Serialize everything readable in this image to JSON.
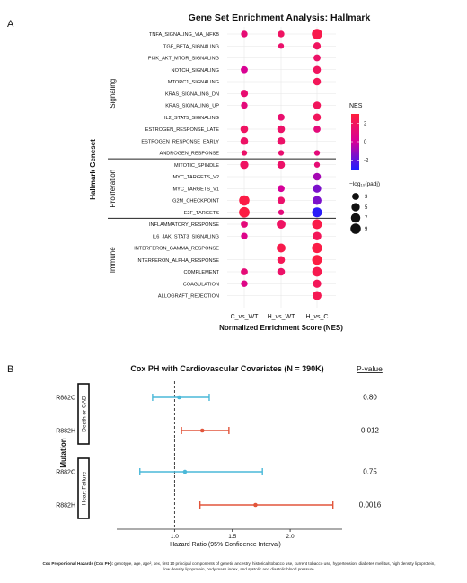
{
  "panel_a": {
    "letter": "A",
    "title": "Gene Set Enrichment Analysis: Hallmark",
    "ylabel": "Hallmark Geneset",
    "xlabel": "Normalized Enrichment Score (NES)",
    "legend_color_title": "NES",
    "legend_size_title": "−log₁₀(padj)",
    "colors": {
      "low": "#1f1fff",
      "mid": "#d60099",
      "high": "#ff1f3d"
    }
  },
  "panel_b": {
    "letter": "B",
    "title": "Cox PH with Cardiovascular Covariates (N = 390K)",
    "pvalue_header": "P-value",
    "ylabel": "Mutation",
    "xlabel": "Hazard Ratio (95% Confidence Interval)",
    "colors": {
      "R882C": "#4ab8d8",
      "R882H": "#e2553b"
    }
  },
  "footer": {
    "bold": "Cox Proportional Hazards (Cox PH):",
    "text": " genotype, age, age², sex, first 10 principal components of genetic ancestry, historical tobacco use, current tobacco use, hypertension, diabetes mellitus, high density lipoprotein, low density lipoprotein, body mass index, and systolic and diastolic blood pressure"
  },
  "chart_data": [
    {
      "type": "scatter",
      "subtype": "dot-plot",
      "x": [
        "C_vs_WT",
        "H_vs_WT",
        "H_vs_C"
      ],
      "groups": [
        {
          "name": "Signaling",
          "genesets": [
            "TNFA_SIGNALING_VIA_NFKB",
            "TGF_BETA_SIGNALING",
            "PI3K_AKT_MTOR_SIGNALING",
            "NOTCH_SIGNALING",
            "MTORC1_SIGNALING",
            "KRAS_SIGNALING_DN",
            "KRAS_SIGNALING_UP",
            "IL2_STAT5_SIGNALING",
            "ESTROGEN_RESPONSE_LATE",
            "ESTROGEN_RESPONSE_EARLY",
            "ANDROGEN_RESPONSE"
          ]
        },
        {
          "name": "Proliferation",
          "genesets": [
            "MITOTIC_SPINDLE",
            "MYC_TARGETS_V2",
            "MYC_TARGETS_V1",
            "G2M_CHECKPOINT",
            "E2F_TARGETS"
          ]
        },
        {
          "name": "Immune",
          "genesets": [
            "INFLAMMATORY_RESPONSE",
            "IL6_JAK_STAT3_SIGNALING",
            "INTERFERON_GAMMA_RESPONSE",
            "INTERFERON_ALPHA_RESPONSE",
            "COMPLEMENT",
            "COAGULATION",
            "ALLOGRAFT_REJECTION"
          ]
        }
      ],
      "color_scale": {
        "title": "NES",
        "ticks": [
          2,
          0,
          -2
        ],
        "range": [
          -3,
          3
        ]
      },
      "size_scale": {
        "title": "−log₁₀(padj)",
        "ticks": [
          3,
          5,
          7,
          9
        ]
      },
      "points": [
        {
          "geneset": "TNFA_SIGNALING_VIA_NFKB",
          "x": "C_vs_WT",
          "nes": 1.2,
          "size": 2.5
        },
        {
          "geneset": "TNFA_SIGNALING_VIA_NFKB",
          "x": "H_vs_WT",
          "nes": 1.8,
          "size": 2.5
        },
        {
          "geneset": "TNFA_SIGNALING_VIA_NFKB",
          "x": "H_vs_C",
          "nes": 2.5,
          "size": 9
        },
        {
          "geneset": "TGF_BETA_SIGNALING",
          "x": "H_vs_WT",
          "nes": 1.5,
          "size": 1.5
        },
        {
          "geneset": "TGF_BETA_SIGNALING",
          "x": "H_vs_C",
          "nes": 1.9,
          "size": 3.5
        },
        {
          "geneset": "PI3K_AKT_MTOR_SIGNALING",
          "x": "H_vs_C",
          "nes": 1.6,
          "size": 3
        },
        {
          "geneset": "NOTCH_SIGNALING",
          "x": "C_vs_WT",
          "nes": 0.2,
          "size": 3
        },
        {
          "geneset": "NOTCH_SIGNALING",
          "x": "H_vs_C",
          "nes": 1.9,
          "size": 4
        },
        {
          "geneset": "MTORC1_SIGNALING",
          "x": "H_vs_C",
          "nes": 2.1,
          "size": 4
        },
        {
          "geneset": "KRAS_SIGNALING_DN",
          "x": "C_vs_WT",
          "nes": 1.3,
          "size": 3.5
        },
        {
          "geneset": "KRAS_SIGNALING_UP",
          "x": "C_vs_WT",
          "nes": 1.0,
          "size": 2.5
        },
        {
          "geneset": "KRAS_SIGNALING_UP",
          "x": "H_vs_C",
          "nes": 2.0,
          "size": 4
        },
        {
          "geneset": "IL2_STAT5_SIGNALING",
          "x": "H_vs_WT",
          "nes": 1.4,
          "size": 3
        },
        {
          "geneset": "IL2_STAT5_SIGNALING",
          "x": "H_vs_C",
          "nes": 2.0,
          "size": 4
        },
        {
          "geneset": "ESTROGEN_RESPONSE_LATE",
          "x": "C_vs_WT",
          "nes": 1.8,
          "size": 4
        },
        {
          "geneset": "ESTROGEN_RESPONSE_LATE",
          "x": "H_vs_WT",
          "nes": 1.6,
          "size": 4
        },
        {
          "geneset": "ESTROGEN_RESPONSE_LATE",
          "x": "H_vs_C",
          "nes": 1.0,
          "size": 3
        },
        {
          "geneset": "ESTROGEN_RESPONSE_EARLY",
          "x": "C_vs_WT",
          "nes": 1.7,
          "size": 4
        },
        {
          "geneset": "ESTROGEN_RESPONSE_EARLY",
          "x": "H_vs_WT",
          "nes": 1.6,
          "size": 4
        },
        {
          "geneset": "ANDROGEN_RESPONSE",
          "x": "C_vs_WT",
          "nes": 1.6,
          "size": 1.5
        },
        {
          "geneset": "ANDROGEN_RESPONSE",
          "x": "H_vs_WT",
          "nes": 1.4,
          "size": 1.5
        },
        {
          "geneset": "ANDROGEN_RESPONSE",
          "x": "H_vs_C",
          "nes": 1.0,
          "size": 1.5
        },
        {
          "geneset": "MITOTIC_SPINDLE",
          "x": "C_vs_WT",
          "nes": 1.8,
          "size": 5
        },
        {
          "geneset": "MITOTIC_SPINDLE",
          "x": "H_vs_WT",
          "nes": 1.6,
          "size": 4
        },
        {
          "geneset": "MITOTIC_SPINDLE",
          "x": "H_vs_C",
          "nes": 1.2,
          "size": 1.5
        },
        {
          "geneset": "MYC_TARGETS_V2",
          "x": "H_vs_C",
          "nes": -0.8,
          "size": 4
        },
        {
          "geneset": "MYC_TARGETS_V1",
          "x": "H_vs_WT",
          "nes": 0.0,
          "size": 3
        },
        {
          "geneset": "MYC_TARGETS_V1",
          "x": "H_vs_C",
          "nes": -1.5,
          "size": 5
        },
        {
          "geneset": "G2M_CHECKPOINT",
          "x": "C_vs_WT",
          "nes": 2.7,
          "size": 9
        },
        {
          "geneset": "G2M_CHECKPOINT",
          "x": "H_vs_WT",
          "nes": 1.5,
          "size": 3.5
        },
        {
          "geneset": "G2M_CHECKPOINT",
          "x": "H_vs_C",
          "nes": -1.5,
          "size": 6
        },
        {
          "geneset": "E2F_TARGETS",
          "x": "C_vs_WT",
          "nes": 2.8,
          "size": 9.5
        },
        {
          "geneset": "E2F_TARGETS",
          "x": "H_vs_WT",
          "nes": 1.0,
          "size": 1.5
        },
        {
          "geneset": "E2F_TARGETS",
          "x": "H_vs_C",
          "nes": -2.8,
          "size": 8
        },
        {
          "geneset": "INFLAMMATORY_RESPONSE",
          "x": "C_vs_WT",
          "nes": 1.0,
          "size": 3
        },
        {
          "geneset": "INFLAMMATORY_RESPONSE",
          "x": "H_vs_WT",
          "nes": 1.8,
          "size": 6
        },
        {
          "geneset": "INFLAMMATORY_RESPONSE",
          "x": "H_vs_C",
          "nes": 2.6,
          "size": 8
        },
        {
          "geneset": "IL6_JAK_STAT3_SIGNALING",
          "x": "C_vs_WT",
          "nes": 0.5,
          "size": 2.5
        },
        {
          "geneset": "IL6_JAK_STAT3_SIGNALING",
          "x": "H_vs_C",
          "nes": 2.1,
          "size": 5.5
        },
        {
          "geneset": "INTERFERON_GAMMA_RESPONSE",
          "x": "H_vs_WT",
          "nes": 2.5,
          "size": 6
        },
        {
          "geneset": "INTERFERON_GAMMA_RESPONSE",
          "x": "H_vs_C",
          "nes": 2.7,
          "size": 8.5
        },
        {
          "geneset": "INTERFERON_ALPHA_RESPONSE",
          "x": "H_vs_WT",
          "nes": 2.2,
          "size": 4
        },
        {
          "geneset": "INTERFERON_ALPHA_RESPONSE",
          "x": "H_vs_C",
          "nes": 2.8,
          "size": 8
        },
        {
          "geneset": "COMPLEMENT",
          "x": "C_vs_WT",
          "nes": 1.1,
          "size": 3
        },
        {
          "geneset": "COMPLEMENT",
          "x": "H_vs_WT",
          "nes": 1.6,
          "size": 4
        },
        {
          "geneset": "COMPLEMENT",
          "x": "H_vs_C",
          "nes": 2.4,
          "size": 7.5
        },
        {
          "geneset": "COAGULATION",
          "x": "C_vs_WT",
          "nes": 0.6,
          "size": 2.5
        },
        {
          "geneset": "COAGULATION",
          "x": "H_vs_C",
          "nes": 2.1,
          "size": 5
        },
        {
          "geneset": "ALLOGRAFT_REJECTION",
          "x": "H_vs_C",
          "nes": 2.3,
          "size": 6
        }
      ]
    },
    {
      "type": "forest",
      "x_ticks": [
        1.0,
        1.5,
        2.0
      ],
      "xlim": [
        0.5,
        2.45
      ],
      "reference_line": 1.0,
      "groups": [
        {
          "name": "Death or CAD",
          "rows": [
            {
              "mutation": "R882C",
              "hr": 1.04,
              "lo": 0.81,
              "hi": 1.3,
              "p": "0.80"
            },
            {
              "mutation": "R882H",
              "hr": 1.24,
              "lo": 1.06,
              "hi": 1.47,
              "p": "0.012"
            }
          ]
        },
        {
          "name": "Heart Failure",
          "rows": [
            {
              "mutation": "R882C",
              "hr": 1.09,
              "lo": 0.7,
              "hi": 1.76,
              "p": "0.75"
            },
            {
              "mutation": "R882H",
              "hr": 1.7,
              "lo": 1.22,
              "hi": 2.37,
              "p": "0.0016"
            }
          ]
        }
      ]
    }
  ]
}
